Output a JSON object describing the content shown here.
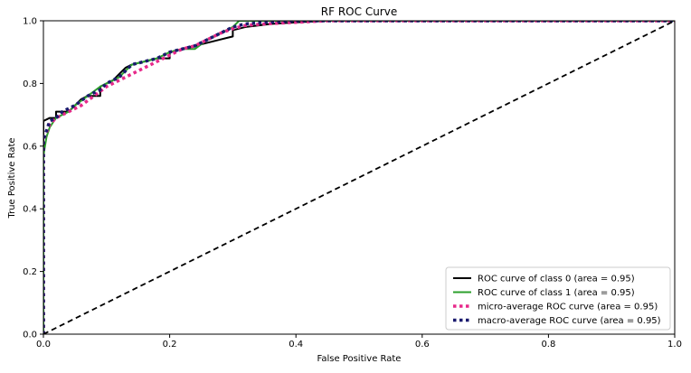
{
  "chart_data": {
    "type": "line",
    "title": "RF ROC Curve",
    "xlabel": "False Positive Rate",
    "ylabel": "True Positive Rate",
    "xlim": [
      0.0,
      1.0
    ],
    "ylim": [
      0.0,
      1.0
    ],
    "xticks": [
      "0.0",
      "0.2",
      "0.4",
      "0.6",
      "0.8",
      "1.0"
    ],
    "yticks": [
      "0.0",
      "0.2",
      "0.4",
      "0.6",
      "0.8",
      "1.0"
    ],
    "grid": false,
    "legend_position": "lower-right",
    "series": [
      {
        "name": "ROC curve of class 0 (area = 0.95)",
        "color": "#000000",
        "style": "solid",
        "x": [
          0.0,
          0.0,
          0.01,
          0.02,
          0.02,
          0.03,
          0.04,
          0.05,
          0.06,
          0.07,
          0.08,
          0.09,
          0.09,
          0.1,
          0.11,
          0.12,
          0.13,
          0.14,
          0.16,
          0.18,
          0.2,
          0.2,
          0.22,
          0.24,
          0.26,
          0.28,
          0.3,
          0.3,
          0.32,
          0.34,
          0.36,
          0.4,
          0.45,
          0.5,
          0.6,
          0.8,
          1.0
        ],
        "y": [
          0.0,
          0.68,
          0.69,
          0.69,
          0.71,
          0.71,
          0.71,
          0.73,
          0.75,
          0.76,
          0.76,
          0.76,
          0.79,
          0.8,
          0.81,
          0.83,
          0.85,
          0.86,
          0.87,
          0.88,
          0.88,
          0.9,
          0.91,
          0.92,
          0.93,
          0.94,
          0.95,
          0.97,
          0.98,
          0.985,
          0.99,
          0.995,
          1.0,
          1.0,
          1.0,
          1.0,
          1.0
        ]
      },
      {
        "name": "ROC curve of class 1 (area = 0.95)",
        "color": "#2ca02c",
        "style": "solid",
        "x": [
          0.0,
          0.0,
          0.005,
          0.01,
          0.02,
          0.03,
          0.04,
          0.05,
          0.07,
          0.09,
          0.1,
          0.12,
          0.14,
          0.16,
          0.18,
          0.2,
          0.22,
          0.24,
          0.26,
          0.28,
          0.3,
          0.31,
          0.33,
          0.36,
          0.4,
          0.5,
          0.6,
          0.8,
          1.0
        ],
        "y": [
          0.0,
          0.57,
          0.63,
          0.66,
          0.69,
          0.7,
          0.71,
          0.73,
          0.76,
          0.79,
          0.8,
          0.82,
          0.86,
          0.87,
          0.88,
          0.9,
          0.91,
          0.91,
          0.94,
          0.96,
          0.98,
          1.0,
          1.0,
          1.0,
          1.0,
          1.0,
          1.0,
          1.0,
          1.0
        ]
      },
      {
        "name": "micro-average ROC curve (area = 0.95)",
        "color": "#e7298a",
        "style": "dotted",
        "x": [
          0.0,
          0.0,
          0.01,
          0.02,
          0.04,
          0.06,
          0.08,
          0.1,
          0.12,
          0.14,
          0.16,
          0.18,
          0.2,
          0.22,
          0.24,
          0.26,
          0.28,
          0.3,
          0.32,
          0.35,
          0.4,
          0.45,
          0.5,
          0.6,
          0.8,
          1.0
        ],
        "y": [
          0.0,
          0.62,
          0.67,
          0.69,
          0.71,
          0.73,
          0.76,
          0.79,
          0.81,
          0.83,
          0.85,
          0.87,
          0.89,
          0.91,
          0.92,
          0.94,
          0.96,
          0.975,
          0.985,
          0.99,
          0.995,
          1.0,
          1.0,
          1.0,
          1.0,
          1.0
        ]
      },
      {
        "name": "macro-average ROC curve (area = 0.95)",
        "color": "#1a1a6e",
        "style": "dotted",
        "x": [
          0.0,
          0.0,
          0.01,
          0.02,
          0.03,
          0.05,
          0.07,
          0.09,
          0.1,
          0.12,
          0.14,
          0.16,
          0.18,
          0.2,
          0.22,
          0.24,
          0.26,
          0.28,
          0.3,
          0.32,
          0.35,
          0.4,
          0.45,
          0.5,
          0.6,
          0.8,
          1.0
        ],
        "y": [
          0.0,
          0.62,
          0.68,
          0.69,
          0.71,
          0.73,
          0.76,
          0.78,
          0.8,
          0.82,
          0.86,
          0.87,
          0.88,
          0.9,
          0.91,
          0.92,
          0.94,
          0.96,
          0.98,
          0.99,
          0.995,
          1.0,
          1.0,
          1.0,
          1.0,
          1.0,
          1.0
        ]
      }
    ],
    "reference_line": {
      "color": "#000000",
      "style": "dashed",
      "x": [
        0.0,
        1.0
      ],
      "y": [
        0.0,
        1.0
      ]
    }
  }
}
